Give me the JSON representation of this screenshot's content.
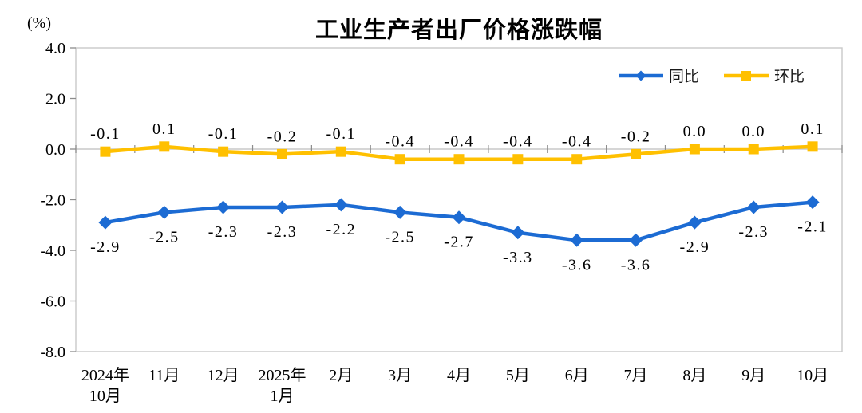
{
  "chart": {
    "background": "#ffffff",
    "axis_line_color": "#c9c9c9",
    "tick_color": "#8c8c8c",
    "text_color": "#000000"
  },
  "chart_data": {
    "type": "line",
    "title": "工业生产者出厂价格涨跌幅",
    "ylabel": "(%)",
    "ylim": [
      -8.0,
      4.0
    ],
    "yticks": [
      4.0,
      2.0,
      0.0,
      -2.0,
      -4.0,
      -6.0,
      -8.0
    ],
    "ytick_labels": [
      "4.0",
      "2.0",
      "0.0",
      "-2.0",
      "-4.0",
      "-6.0",
      "-8.0"
    ],
    "grid": "zero-baseline-only",
    "legend_position": "top-right-inside",
    "categories": [
      [
        "2024年",
        "10月"
      ],
      [
        "11月"
      ],
      [
        "12月"
      ],
      [
        "2025年",
        "1月"
      ],
      [
        "2月"
      ],
      [
        "3月"
      ],
      [
        "4月"
      ],
      [
        "5月"
      ],
      [
        "6月"
      ],
      [
        "7月"
      ],
      [
        "8月"
      ],
      [
        "9月"
      ],
      [
        "10月"
      ]
    ],
    "series": [
      {
        "name": "同比",
        "marker": "diamond",
        "color": "#1c6bd3",
        "label_position": "below",
        "values": [
          -2.9,
          -2.5,
          -2.3,
          -2.3,
          -2.2,
          -2.5,
          -2.7,
          -3.3,
          -3.6,
          -3.6,
          -2.9,
          -2.3,
          -2.1
        ]
      },
      {
        "name": "环比",
        "marker": "square",
        "color": "#ffc000",
        "label_position": "above",
        "values": [
          -0.1,
          0.1,
          -0.1,
          -0.2,
          -0.1,
          -0.4,
          -0.4,
          -0.4,
          -0.4,
          -0.2,
          0.0,
          0.0,
          0.1
        ]
      }
    ]
  }
}
